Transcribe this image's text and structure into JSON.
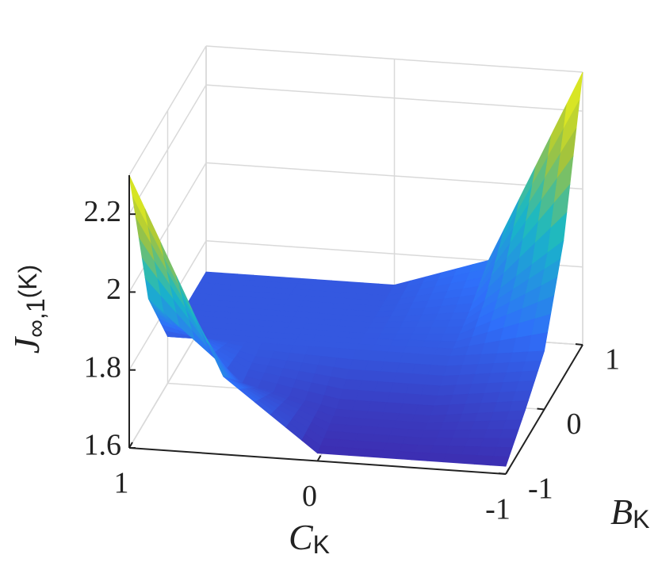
{
  "chart_data": {
    "type": "surface",
    "x_label": {
      "text": "C",
      "sub": "K"
    },
    "y_label": {
      "text": "B",
      "sub": "K"
    },
    "z_label": {
      "text": "J",
      "sub": "∞,1",
      "tail": "(K)"
    },
    "x": [
      1,
      0.5,
      0,
      -0.5,
      -1
    ],
    "y": [
      -1,
      -0.5,
      0,
      0.5,
      1
    ],
    "z": [
      [
        2.3,
        1.8,
        1.62,
        1.62,
        1.62
      ],
      [
        1.9,
        1.7,
        1.65,
        1.65,
        1.68
      ],
      [
        1.72,
        1.72,
        1.72,
        1.72,
        1.75
      ],
      [
        1.72,
        1.72,
        1.72,
        1.75,
        1.95
      ],
      [
        1.72,
        1.72,
        1.72,
        1.8,
        2.3
      ]
    ],
    "xlim": [
      -1,
      1
    ],
    "ylim": [
      -1,
      1
    ],
    "zlim": [
      1.6,
      2.3
    ],
    "xticks": [
      -1,
      0,
      1
    ],
    "yticks": [
      -1,
      0,
      1
    ],
    "zticks": [
      1.6,
      1.8,
      2,
      2.2
    ],
    "grid": true,
    "colormap": [
      "#3e26a8",
      "#2f6ffa",
      "#18b8c6",
      "#a6c43a",
      "#f9fb15"
    ]
  }
}
